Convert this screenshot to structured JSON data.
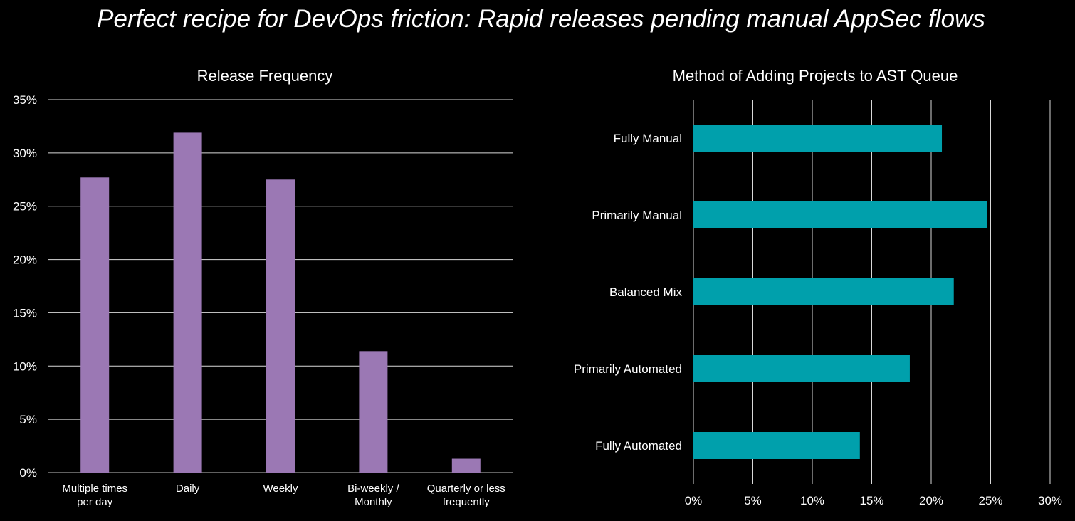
{
  "title": "Perfect recipe for DevOps friction: Rapid releases pending manual AppSec flows",
  "chart_data": [
    {
      "type": "bar",
      "orientation": "vertical",
      "title": "Release Frequency",
      "categories": [
        [
          "Multiple times",
          "per day"
        ],
        [
          "Daily"
        ],
        [
          "Weekly"
        ],
        [
          "Bi-weekly /",
          "Monthly"
        ],
        [
          "Quarterly or less",
          "frequently"
        ]
      ],
      "values": [
        27.7,
        31.9,
        27.5,
        11.4,
        1.3
      ],
      "ylim": [
        0,
        35
      ],
      "yticks": [
        "0%",
        "5%",
        "10%",
        "15%",
        "20%",
        "25%",
        "30%",
        "35%"
      ],
      "grid": true,
      "color": "#9b78b4"
    },
    {
      "type": "bar",
      "orientation": "horizontal",
      "title": "Method of Adding Projects to AST Queue",
      "categories": [
        "Fully Manual",
        "Primarily Manual",
        "Balanced Mix",
        "Primarily Automated",
        "Fully Automated"
      ],
      "values": [
        20.9,
        24.7,
        21.9,
        18.2,
        14.0
      ],
      "xlim": [
        0,
        30
      ],
      "xticks": [
        "0%",
        "5%",
        "10%",
        "15%",
        "20%",
        "25%",
        "30%"
      ],
      "grid": true,
      "color": "#00a0ac"
    }
  ]
}
